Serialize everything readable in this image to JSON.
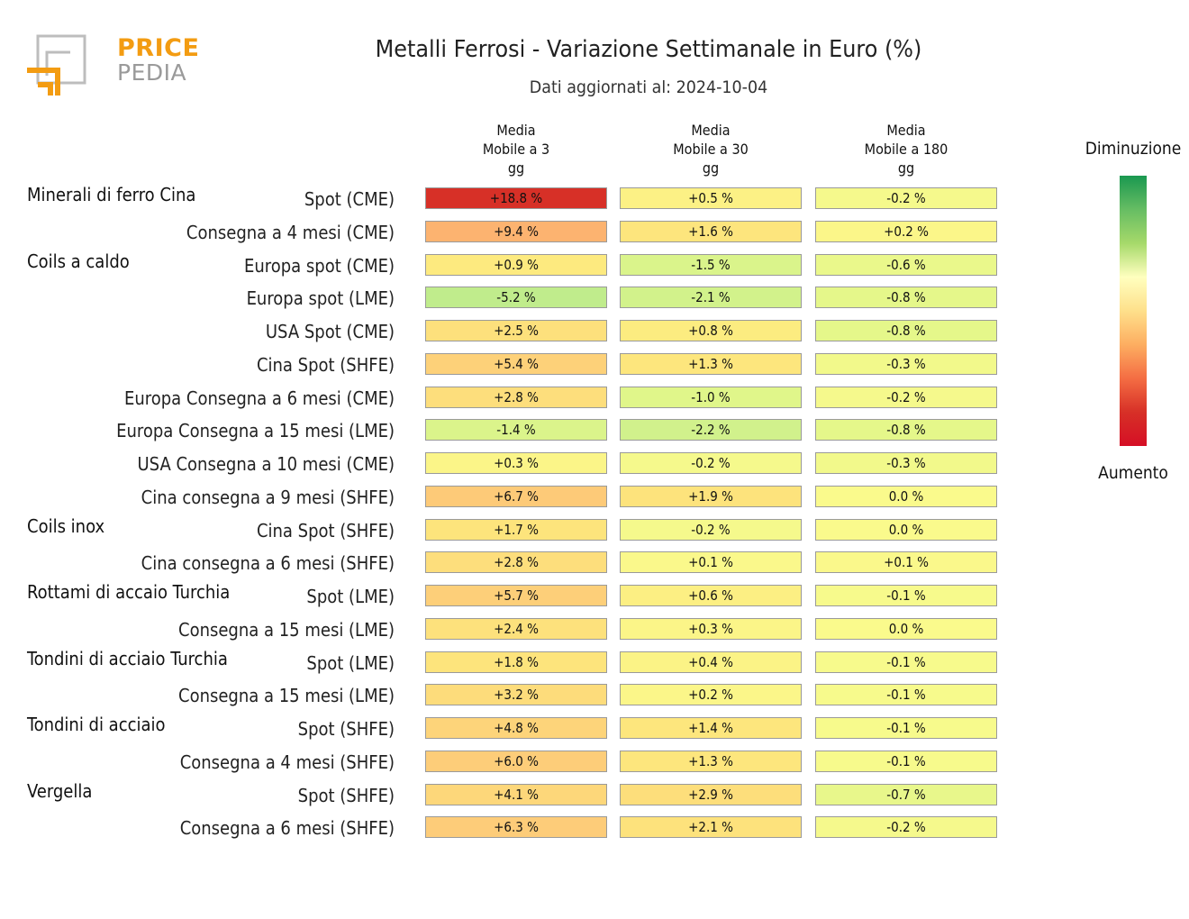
{
  "logo": {
    "line1": "PRICE",
    "line2": "PEDIA",
    "accent_color": "#f39c12",
    "gray_color": "#9a9a9a"
  },
  "title": "Metalli Ferrosi - Variazione Settimanale in Euro (%)",
  "subtitle": "Dati aggiornati al: 2024-10-04",
  "legend": {
    "top": "Diminuzione",
    "bottom": "Aumento"
  },
  "chart_data": {
    "type": "table",
    "columns": [
      "Media\nMobile a 3\ngg",
      "Media\nMobile a 30\ngg",
      "Media\nMobile a 180\ngg"
    ],
    "groups": [
      {
        "name": "Minerali di ferro Cina",
        "rows": [
          {
            "label": "Spot (CME)",
            "values": [
              "+18.8 %",
              "+0.5 %",
              "-0.2 %"
            ],
            "nums": [
              18.8,
              0.5,
              -0.2
            ]
          },
          {
            "label": "Consegna a 4 mesi (CME)",
            "values": [
              "+9.4 %",
              "+1.6 %",
              "+0.2 %"
            ],
            "nums": [
              9.4,
              1.6,
              0.2
            ]
          }
        ]
      },
      {
        "name": "Coils a caldo",
        "rows": [
          {
            "label": "Europa spot (CME)",
            "values": [
              "+0.9 %",
              "-1.5 %",
              "-0.6 %"
            ],
            "nums": [
              0.9,
              -1.5,
              -0.6
            ]
          },
          {
            "label": "Europa spot (LME)",
            "values": [
              "-5.2 %",
              "-2.1 %",
              "-0.8 %"
            ],
            "nums": [
              -5.2,
              -2.1,
              -0.8
            ]
          },
          {
            "label": "USA Spot (CME)",
            "values": [
              "+2.5 %",
              "+0.8 %",
              "-0.8 %"
            ],
            "nums": [
              2.5,
              0.8,
              -0.8
            ]
          },
          {
            "label": "Cina Spot (SHFE)",
            "values": [
              "+5.4 %",
              "+1.3 %",
              "-0.3 %"
            ],
            "nums": [
              5.4,
              1.3,
              -0.3
            ]
          },
          {
            "label": "Europa Consegna a 6 mesi (CME)",
            "values": [
              "+2.8 %",
              "-1.0 %",
              "-0.2 %"
            ],
            "nums": [
              2.8,
              -1.0,
              -0.2
            ]
          },
          {
            "label": "Europa Consegna a 15 mesi (LME)",
            "values": [
              "-1.4 %",
              "-2.2 %",
              "-0.8 %"
            ],
            "nums": [
              -1.4,
              -2.2,
              -0.8
            ]
          },
          {
            "label": "USA Consegna a 10 mesi (CME)",
            "values": [
              "+0.3 %",
              "-0.2 %",
              "-0.3 %"
            ],
            "nums": [
              0.3,
              -0.2,
              -0.3
            ]
          },
          {
            "label": "Cina consegna a 9 mesi (SHFE)",
            "values": [
              "+6.7 %",
              "+1.9 %",
              "0.0 %"
            ],
            "nums": [
              6.7,
              1.9,
              0.0
            ]
          }
        ]
      },
      {
        "name": "Coils inox",
        "rows": [
          {
            "label": "Cina Spot (SHFE)",
            "values": [
              "+1.7 %",
              "-0.2 %",
              "0.0 %"
            ],
            "nums": [
              1.7,
              -0.2,
              0.0
            ]
          },
          {
            "label": "Cina consegna a 6 mesi (SHFE)",
            "values": [
              "+2.8 %",
              "+0.1 %",
              "+0.1 %"
            ],
            "nums": [
              2.8,
              0.1,
              0.1
            ]
          }
        ]
      },
      {
        "name": "Rottami di accaio Turchia",
        "rows": [
          {
            "label": "Spot (LME)",
            "values": [
              "+5.7 %",
              "+0.6 %",
              "-0.1 %"
            ],
            "nums": [
              5.7,
              0.6,
              -0.1
            ]
          },
          {
            "label": "Consegna a 15 mesi (LME)",
            "values": [
              "+2.4 %",
              "+0.3 %",
              "0.0 %"
            ],
            "nums": [
              2.4,
              0.3,
              0.0
            ]
          }
        ]
      },
      {
        "name": "Tondini di acciaio Turchia",
        "rows": [
          {
            "label": "Spot (LME)",
            "values": [
              "+1.8 %",
              "+0.4 %",
              "-0.1 %"
            ],
            "nums": [
              1.8,
              0.4,
              -0.1
            ]
          },
          {
            "label": "Consegna a 15 mesi (LME)",
            "values": [
              "+3.2 %",
              "+0.2 %",
              "-0.1 %"
            ],
            "nums": [
              3.2,
              0.2,
              -0.1
            ]
          }
        ]
      },
      {
        "name": "Tondini di acciaio",
        "rows": [
          {
            "label": "Spot (SHFE)",
            "values": [
              "+4.8 %",
              "+1.4 %",
              "-0.1 %"
            ],
            "nums": [
              4.8,
              1.4,
              -0.1
            ]
          },
          {
            "label": "Consegna a 4 mesi (SHFE)",
            "values": [
              "+6.0 %",
              "+1.3 %",
              "-0.1 %"
            ],
            "nums": [
              6.0,
              1.3,
              -0.1
            ]
          }
        ]
      },
      {
        "name": "Vergella",
        "rows": [
          {
            "label": "Spot (SHFE)",
            "values": [
              "+4.1 %",
              "+2.9 %",
              "-0.7 %"
            ],
            "nums": [
              4.1,
              2.9,
              -0.7
            ]
          },
          {
            "label": "Consegna a 6 mesi (SHFE)",
            "values": [
              "+6.3 %",
              "+2.1 %",
              "-0.2 %"
            ],
            "nums": [
              6.3,
              2.1,
              -0.2
            ]
          }
        ]
      }
    ]
  }
}
